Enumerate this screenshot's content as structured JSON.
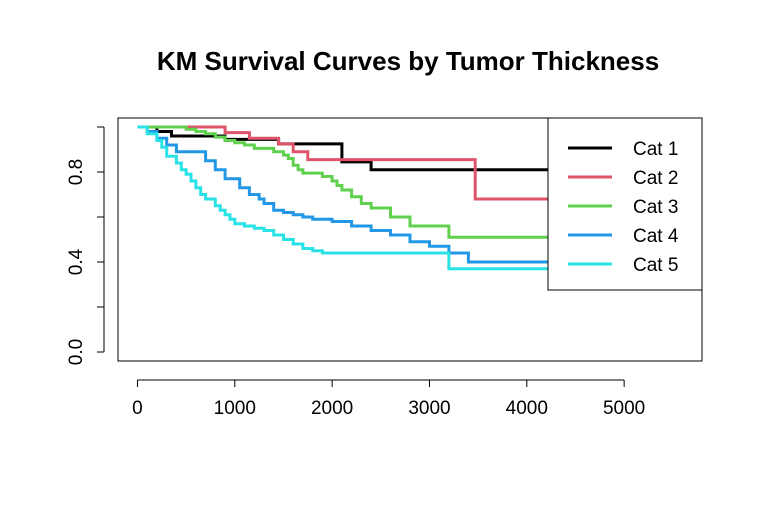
{
  "chart_data": {
    "type": "line",
    "title": "KM Survival Curves by Tumor Thickness",
    "xlabel": "",
    "ylabel": "",
    "xlim": [
      -200,
      5800
    ],
    "ylim": [
      -0.04,
      1.04
    ],
    "x_ticks": [
      0,
      1000,
      2000,
      3000,
      4000,
      5000
    ],
    "x_tick_labels": [
      "0",
      "1000",
      "2000",
      "3000",
      "4000",
      "5000"
    ],
    "y_ticks": [
      0.0,
      0.2,
      0.4,
      0.6,
      0.8,
      1.0
    ],
    "y_tick_labels": [
      "0.0",
      "",
      "0.4",
      "",
      "0.8",
      ""
    ],
    "grid": false,
    "legend_position": "top-right",
    "series": [
      {
        "name": "Cat 1",
        "color": "#000000",
        "step_x": [
          0,
          200,
          350,
          900,
          1450,
          2100,
          2400,
          4300
        ],
        "step_y": [
          1.0,
          0.98,
          0.96,
          0.945,
          0.925,
          0.845,
          0.81,
          0.81
        ]
      },
      {
        "name": "Cat 2",
        "color": "#DF536B",
        "step_x": [
          0,
          900,
          1150,
          1450,
          1600,
          1750,
          2100,
          3470,
          4300
        ],
        "step_y": [
          1.0,
          0.975,
          0.95,
          0.925,
          0.89,
          0.855,
          0.855,
          0.68,
          0.68
        ]
      },
      {
        "name": "Cat 3",
        "color": "#61D04F",
        "step_x": [
          0,
          500,
          600,
          700,
          800,
          900,
          1000,
          1100,
          1200,
          1400,
          1500,
          1550,
          1600,
          1650,
          1700,
          1900,
          2000,
          2050,
          2100,
          2200,
          2300,
          2400,
          2600,
          2800,
          3200,
          4300
        ],
        "step_y": [
          1.0,
          0.99,
          0.98,
          0.97,
          0.955,
          0.94,
          0.93,
          0.92,
          0.905,
          0.89,
          0.875,
          0.86,
          0.83,
          0.81,
          0.795,
          0.78,
          0.76,
          0.74,
          0.72,
          0.69,
          0.66,
          0.64,
          0.6,
          0.56,
          0.51,
          0.51
        ]
      },
      {
        "name": "Cat 4",
        "color": "#2297E6",
        "step_x": [
          0,
          50,
          100,
          200,
          300,
          400,
          700,
          800,
          900,
          1050,
          1150,
          1250,
          1300,
          1400,
          1500,
          1600,
          1700,
          1800,
          2000,
          2200,
          2400,
          2600,
          2800,
          3000,
          3200,
          3400,
          4300
        ],
        "step_y": [
          1.0,
          1.0,
          0.98,
          0.95,
          0.92,
          0.89,
          0.85,
          0.81,
          0.77,
          0.73,
          0.7,
          0.68,
          0.66,
          0.63,
          0.62,
          0.61,
          0.6,
          0.59,
          0.58,
          0.56,
          0.54,
          0.52,
          0.49,
          0.47,
          0.44,
          0.4,
          0.4
        ]
      },
      {
        "name": "Cat 5",
        "color": "#28E2E5",
        "step_x": [
          0,
          100,
          200,
          250,
          300,
          400,
          450,
          500,
          550,
          600,
          650,
          700,
          800,
          850,
          900,
          950,
          1000,
          1100,
          1200,
          1300,
          1400,
          1500,
          1600,
          1700,
          1800,
          1900,
          2100,
          3200,
          4300
        ],
        "step_y": [
          1.0,
          0.97,
          0.94,
          0.91,
          0.87,
          0.84,
          0.81,
          0.79,
          0.76,
          0.73,
          0.7,
          0.68,
          0.65,
          0.63,
          0.61,
          0.59,
          0.57,
          0.56,
          0.55,
          0.54,
          0.52,
          0.5,
          0.48,
          0.46,
          0.45,
          0.44,
          0.44,
          0.37,
          0.37
        ]
      }
    ]
  }
}
